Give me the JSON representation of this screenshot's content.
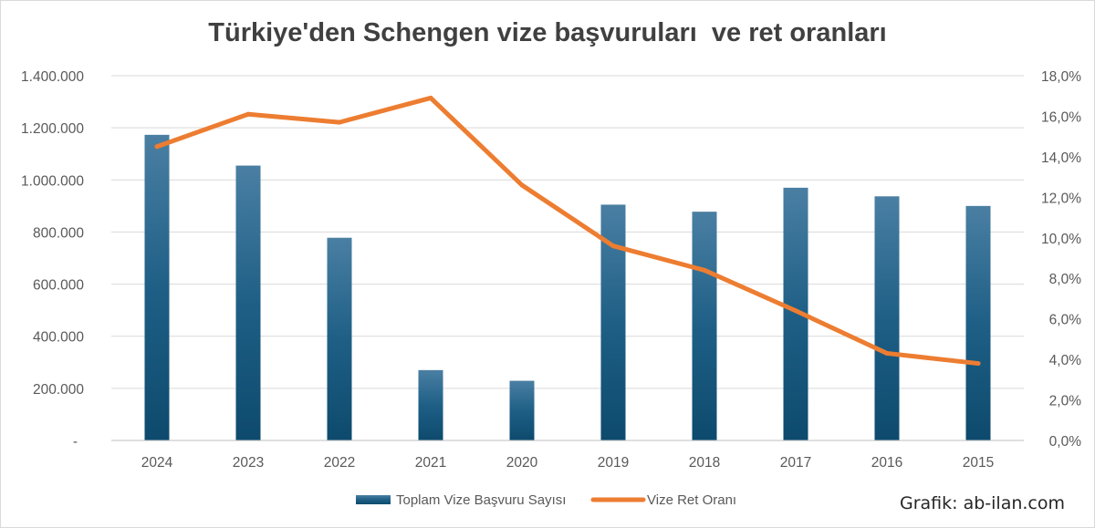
{
  "chart_data": {
    "type": "bar",
    "title": "Türkiye'den Schengen vize başvuruları  ve ret oranları",
    "categories": [
      "2024",
      "2023",
      "2022",
      "2021",
      "2020",
      "2019",
      "2018",
      "2017",
      "2016",
      "2015"
    ],
    "series": [
      {
        "name": "Toplam Vize Başvuru Sayısı",
        "type": "bar",
        "axis": "left",
        "color": "#1f5b80",
        "values": [
          1173000,
          1055000,
          778000,
          270000,
          229000,
          905000,
          878000,
          970000,
          937000,
          900000
        ]
      },
      {
        "name": "Vize Ret Oranı",
        "type": "line",
        "axis": "right",
        "color": "#ed7d31",
        "values": [
          14.5,
          16.1,
          15.7,
          16.9,
          12.6,
          9.6,
          8.4,
          6.4,
          4.3,
          3.8
        ]
      }
    ],
    "left_axis": {
      "ylim": [
        0,
        1400000
      ],
      "ticks": [
        "-",
        "200.000",
        "400.000",
        "600.000",
        "800.000",
        "1.000.000",
        "1.200.000",
        "1.400.000"
      ]
    },
    "right_axis": {
      "ylim": [
        0,
        18
      ],
      "ticks": [
        "0,0%",
        "2,0%",
        "4,0%",
        "6,0%",
        "8,0%",
        "10,0%",
        "12,0%",
        "14,0%",
        "16,0%",
        "18,0%"
      ]
    },
    "grid": true,
    "legend_position": "bottom"
  },
  "credit": "Grafik: ab-ilan.com"
}
